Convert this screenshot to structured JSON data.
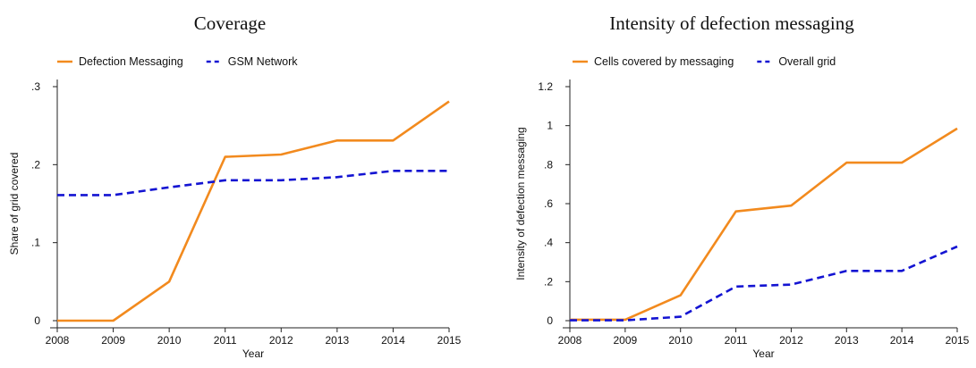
{
  "chart_data": [
    {
      "type": "line",
      "title": "Coverage",
      "xlabel": "Year",
      "ylabel": "Share of grid covered",
      "x": [
        2008,
        2009,
        2010,
        2011,
        2012,
        2013,
        2014,
        2015
      ],
      "xlim": [
        2008,
        2015
      ],
      "ylim": [
        0,
        0.3
      ],
      "yticks": [
        0,
        0.1,
        0.2,
        0.3
      ],
      "ytick_labels": [
        "0",
        ".1",
        ".2",
        ".3"
      ],
      "legend_position": "top-left",
      "grid": false,
      "series": [
        {
          "name": "Defection Messaging",
          "values": [
            0.0,
            0.0,
            0.05,
            0.21,
            0.213,
            0.231,
            0.231,
            0.281
          ],
          "color": "#f28a1e",
          "style": "solid"
        },
        {
          "name": "GSM Network",
          "values": [
            0.161,
            0.161,
            0.171,
            0.18,
            0.18,
            0.184,
            0.192,
            0.192
          ],
          "color": "#1414d2",
          "style": "dashed"
        }
      ]
    },
    {
      "type": "line",
      "title": "Intensity of defection messaging",
      "xlabel": "Year",
      "ylabel": "Intensity of defection messaging",
      "x": [
        2008,
        2009,
        2010,
        2011,
        2012,
        2013,
        2014,
        2015
      ],
      "xlim": [
        2008,
        2015
      ],
      "ylim": [
        0,
        1.2
      ],
      "yticks": [
        0,
        0.2,
        0.4,
        0.6,
        0.8,
        1.0,
        1.2
      ],
      "ytick_labels": [
        "0",
        ".2",
        ".4",
        ".6",
        ".8",
        "1",
        "1.2"
      ],
      "legend_position": "top-left",
      "grid": false,
      "series": [
        {
          "name": "Cells covered by messaging",
          "values": [
            0.005,
            0.005,
            0.13,
            0.56,
            0.59,
            0.81,
            0.81,
            0.985
          ],
          "color": "#f28a1e",
          "style": "solid"
        },
        {
          "name": "Overall grid",
          "values": [
            0.002,
            0.002,
            0.02,
            0.175,
            0.185,
            0.255,
            0.255,
            0.38
          ],
          "color": "#1414d2",
          "style": "dashed"
        }
      ]
    }
  ]
}
